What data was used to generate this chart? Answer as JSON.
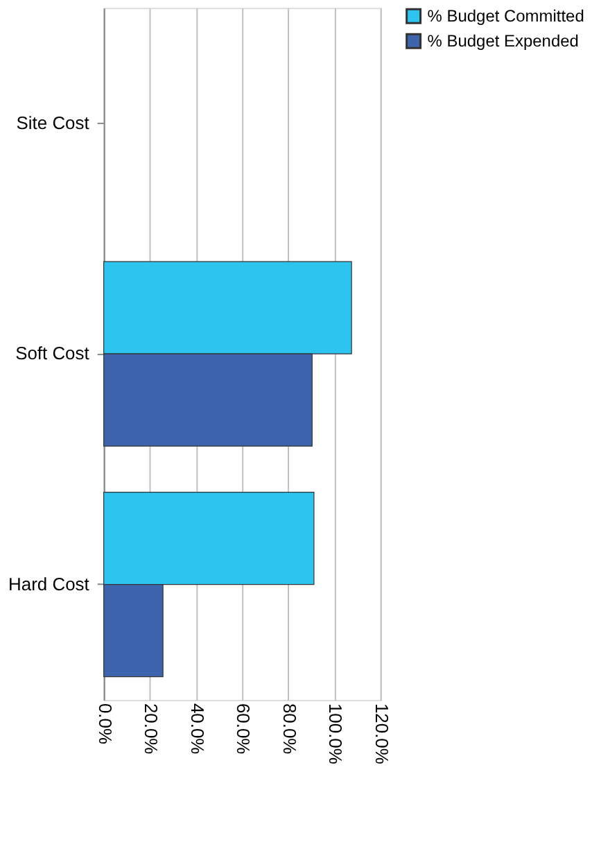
{
  "chart_data": {
    "type": "bar",
    "orientation": "horizontal",
    "categories": [
      "Site Cost",
      "Soft Cost",
      "Hard Cost"
    ],
    "series": [
      {
        "name": "% Budget Committed",
        "color": "#2ec4f0",
        "values": [
          null,
          107.5,
          91.2
        ]
      },
      {
        "name": "% Budget Expended",
        "color": "#3f64ae",
        "values": [
          null,
          90.4,
          25.7
        ]
      }
    ],
    "xlim": [
      0,
      120
    ],
    "xticks": [
      {
        "value": 0,
        "label": "0.0%"
      },
      {
        "value": 20,
        "label": "20.0%"
      },
      {
        "value": 40,
        "label": "40.0%"
      },
      {
        "value": 60,
        "label": "60.0%"
      },
      {
        "value": 80,
        "label": "80.0%"
      },
      {
        "value": 100,
        "label": "100.0%"
      },
      {
        "value": 120,
        "label": "120.0%"
      }
    ],
    "grid": "x",
    "legend": "right"
  }
}
